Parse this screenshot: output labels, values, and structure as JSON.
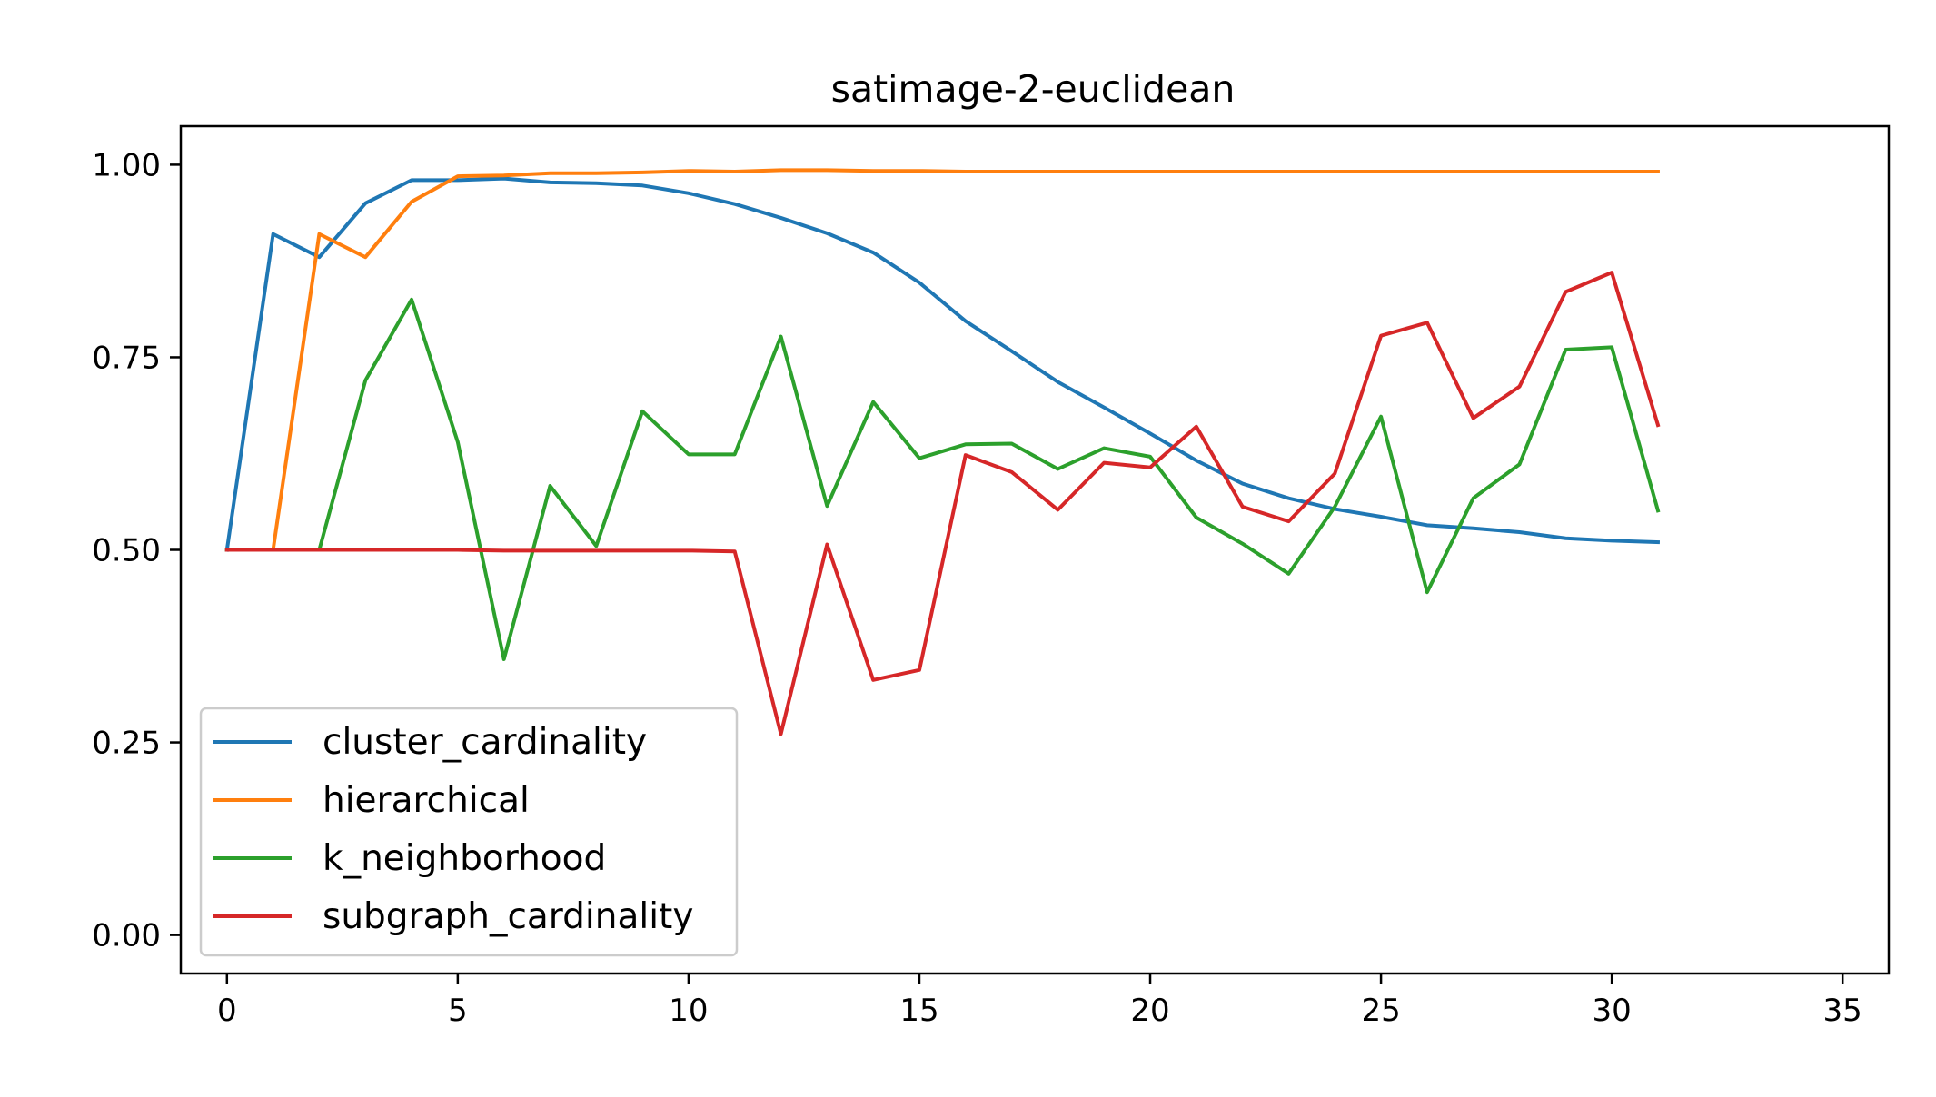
{
  "chart_data": {
    "type": "line",
    "title": "satimage-2-euclidean",
    "xlabel": "",
    "ylabel": "",
    "xlim": [
      -1,
      36
    ],
    "ylim": [
      -0.05,
      1.05
    ],
    "xticks": [
      0,
      5,
      10,
      15,
      20,
      25,
      30,
      35
    ],
    "xtick_labels": [
      "0",
      "5",
      "10",
      "15",
      "20",
      "25",
      "30",
      "35"
    ],
    "yticks": [
      0.0,
      0.25,
      0.5,
      0.75,
      1.0
    ],
    "ytick_labels": [
      "0.00",
      "0.25",
      "0.50",
      "0.75",
      "1.00"
    ],
    "grid": false,
    "legend_position": "lower-left",
    "x": [
      0,
      1,
      2,
      3,
      4,
      5,
      6,
      7,
      8,
      9,
      10,
      11,
      12,
      13,
      14,
      15,
      16,
      17,
      18,
      19,
      20,
      21,
      22,
      23,
      24,
      25,
      26,
      27,
      28,
      29,
      30,
      31
    ],
    "series": [
      {
        "name": "cluster_cardinality",
        "color": "#1f77b4",
        "values": [
          0.5,
          0.91,
          0.88,
          0.95,
          0.98,
          0.98,
          0.982,
          0.977,
          0.976,
          0.973,
          0.963,
          0.949,
          0.931,
          0.911,
          0.886,
          0.847,
          0.797,
          0.758,
          0.718,
          0.685,
          0.651,
          0.616,
          0.586,
          0.567,
          0.553,
          0.543,
          0.532,
          0.528,
          0.523,
          0.515,
          0.512,
          0.51
        ]
      },
      {
        "name": "hierarchical",
        "color": "#ff7f0e",
        "values": [
          0.5,
          0.5,
          0.91,
          0.88,
          0.952,
          0.985,
          0.986,
          0.989,
          0.989,
          0.99,
          0.992,
          0.991,
          0.993,
          0.993,
          0.992,
          0.992,
          0.991,
          0.991,
          0.991,
          0.991,
          0.991,
          0.991,
          0.991,
          0.991,
          0.991,
          0.991,
          0.991,
          0.991,
          0.991,
          0.991,
          0.991,
          0.991
        ]
      },
      {
        "name": "k_neighborhood",
        "color": "#2ca02c",
        "values": [
          0.5,
          0.5,
          0.5,
          0.72,
          0.825,
          0.64,
          0.358,
          0.583,
          0.505,
          0.68,
          0.624,
          0.624,
          0.777,
          0.557,
          0.692,
          0.619,
          0.637,
          0.638,
          0.605,
          0.632,
          0.621,
          0.542,
          0.508,
          0.469,
          0.556,
          0.673,
          0.445,
          0.567,
          0.611,
          0.76,
          0.763,
          0.551
        ]
      },
      {
        "name": "subgraph_cardinality",
        "color": "#d62728",
        "values": [
          0.5,
          0.5,
          0.5,
          0.5,
          0.5,
          0.5,
          0.499,
          0.499,
          0.499,
          0.499,
          0.499,
          0.498,
          0.261,
          0.507,
          0.331,
          0.344,
          0.623,
          0.601,
          0.552,
          0.613,
          0.607,
          0.66,
          0.556,
          0.537,
          0.599,
          0.778,
          0.795,
          0.671,
          0.712,
          0.835,
          0.86,
          0.662
        ]
      }
    ]
  }
}
